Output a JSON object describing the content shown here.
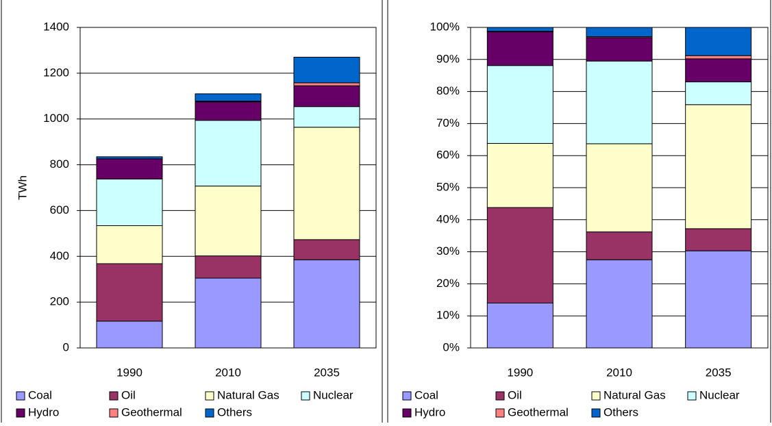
{
  "chart_data": [
    {
      "type": "bar",
      "stacked": true,
      "ylabel": "TWh",
      "categories": [
        "1990",
        "2010",
        "2035"
      ],
      "series": [
        {
          "name": "Coal",
          "color": "#9999ff",
          "values": [
            117,
            305,
            385
          ]
        },
        {
          "name": "Oil",
          "color": "#993366",
          "values": [
            251,
            97,
            88
          ]
        },
        {
          "name": "Natural Gas",
          "color": "#ffffcc",
          "values": [
            166,
            305,
            491
          ]
        },
        {
          "name": "Nuclear",
          "color": "#ccffff",
          "values": [
            204,
            287,
            90
          ]
        },
        {
          "name": "Hydro",
          "color": "#660066",
          "values": [
            88,
            81,
            91
          ]
        },
        {
          "name": "Geothermal",
          "color": "#ff8080",
          "values": [
            0,
            3,
            13
          ]
        },
        {
          "name": "Others",
          "color": "#0066cc",
          "values": [
            9,
            32,
            112
          ]
        }
      ],
      "ylim": [
        0,
        1400
      ],
      "yticks": [
        0,
        200,
        400,
        600,
        800,
        1000,
        1200,
        1400
      ],
      "grid": true
    },
    {
      "type": "bar",
      "stacked": true,
      "categories": [
        "1990",
        "2010",
        "2035"
      ],
      "series": [
        {
          "name": "Coal",
          "color": "#9999ff",
          "values": [
            14,
            27.5,
            30.3
          ]
        },
        {
          "name": "Oil",
          "color": "#993366",
          "values": [
            29.8,
            8.7,
            6.9
          ]
        },
        {
          "name": "Natural Gas",
          "color": "#ffffcc",
          "values": [
            20,
            27.5,
            38.7
          ]
        },
        {
          "name": "Nuclear",
          "color": "#ccffff",
          "values": [
            24.3,
            25.8,
            7.1
          ]
        },
        {
          "name": "Hydro",
          "color": "#660066",
          "values": [
            10.5,
            7.3,
            7.2
          ]
        },
        {
          "name": "Geothermal",
          "color": "#ff8080",
          "values": [
            0.2,
            0.3,
            1
          ]
        },
        {
          "name": "Others",
          "color": "#0066cc",
          "values": [
            1.2,
            2.9,
            8.8
          ]
        }
      ],
      "ylim": [
        0,
        100
      ],
      "yticks": [
        {
          "value": 0,
          "label": "0%"
        },
        {
          "value": 10,
          "label": "10%"
        },
        {
          "value": 20,
          "label": "20%"
        },
        {
          "value": 30,
          "label": "30%"
        },
        {
          "value": 40,
          "label": "40%"
        },
        {
          "value": 50,
          "label": "50%"
        },
        {
          "value": 60,
          "label": "60%"
        },
        {
          "value": 70,
          "label": "70%"
        },
        {
          "value": 80,
          "label": "80%"
        },
        {
          "value": 90,
          "label": "90%"
        },
        {
          "value": 100,
          "label": "100%"
        }
      ],
      "grid": true
    }
  ]
}
